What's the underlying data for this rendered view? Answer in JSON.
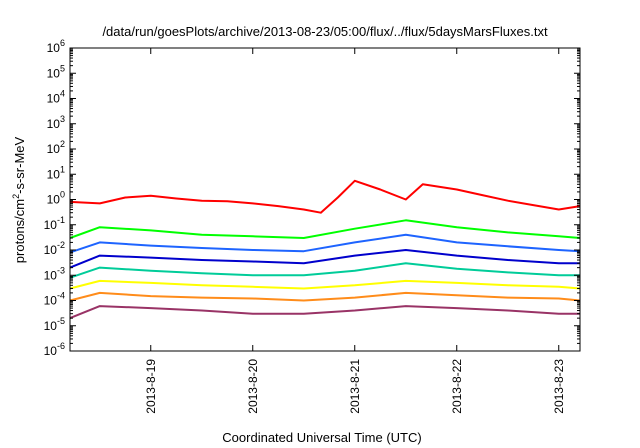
{
  "chart_data": {
    "type": "line",
    "title": "/data/run/goesPlots/archive/2013-08-23/05:00/flux/../flux/5daysMarsFluxes.txt",
    "xlabel": "Coordinated Universal Time (UTC)",
    "ylabel_parts": [
      "protons/cm",
      "2",
      "-s-sr-MeV"
    ],
    "y_scale": "log",
    "ylim": [
      1e-06,
      1000000.0
    ],
    "y_ticks": [
      {
        "base": "10",
        "exp": "-6",
        "value": 1e-06
      },
      {
        "base": "10",
        "exp": "-5",
        "value": 1e-05
      },
      {
        "base": "10",
        "exp": "-4",
        "value": 0.0001
      },
      {
        "base": "10",
        "exp": "-3",
        "value": 0.001
      },
      {
        "base": "10",
        "exp": "-2",
        "value": 0.01
      },
      {
        "base": "10",
        "exp": "-1",
        "value": 0.1
      },
      {
        "base": "10",
        "exp": "0",
        "value": 1
      },
      {
        "base": "10",
        "exp": "1",
        "value": 10.0
      },
      {
        "base": "10",
        "exp": "2",
        "value": 100.0
      },
      {
        "base": "10",
        "exp": "3",
        "value": 1000.0
      },
      {
        "base": "10",
        "exp": "4",
        "value": 10000.0
      },
      {
        "base": "10",
        "exp": "5",
        "value": 100000.0
      },
      {
        "base": "10",
        "exp": "6",
        "value": 1000000.0
      }
    ],
    "xlim": [
      "2013-08-18 05:00",
      "2013-08-23 05:00"
    ],
    "x_ticks": [
      {
        "label": "2013-8-19",
        "date": "2013-08-19 00:00"
      },
      {
        "label": "2013-8-20",
        "date": "2013-08-20 00:00"
      },
      {
        "label": "2013-8-21",
        "date": "2013-08-21 00:00"
      },
      {
        "label": "2013-8-22",
        "date": "2013-08-22 00:00"
      },
      {
        "label": "2013-8-23",
        "date": "2013-08-23 00:00"
      }
    ],
    "grid": false,
    "series": [
      {
        "color": "#ff0000",
        "points": [
          [
            "2013-08-18 05:00",
            0.8
          ],
          [
            "2013-08-18 12:00",
            0.7
          ],
          [
            "2013-08-18 18:00",
            1.2
          ],
          [
            "2013-08-19 00:00",
            1.4
          ],
          [
            "2013-08-19 06:00",
            1.1
          ],
          [
            "2013-08-19 12:00",
            0.9
          ],
          [
            "2013-08-19 18:00",
            0.85
          ],
          [
            "2013-08-20 00:00",
            0.7
          ],
          [
            "2013-08-20 06:00",
            0.55
          ],
          [
            "2013-08-20 12:00",
            0.4
          ],
          [
            "2013-08-20 16:00",
            0.3
          ],
          [
            "2013-08-20 20:00",
            1.2
          ],
          [
            "2013-08-21 00:00",
            5.5
          ],
          [
            "2013-08-21 06:00",
            2.5
          ],
          [
            "2013-08-21 12:00",
            1.0
          ],
          [
            "2013-08-21 16:00",
            4.0
          ],
          [
            "2013-08-22 00:00",
            2.5
          ],
          [
            "2013-08-22 06:00",
            1.5
          ],
          [
            "2013-08-22 12:00",
            0.9
          ],
          [
            "2013-08-22 18:00",
            0.6
          ],
          [
            "2013-08-23 00:00",
            0.4
          ],
          [
            "2013-08-23 05:00",
            0.55
          ]
        ]
      },
      {
        "color": "#00ff00",
        "points": [
          [
            "2013-08-18 05:00",
            0.03
          ],
          [
            "2013-08-18 12:00",
            0.08
          ],
          [
            "2013-08-19 00:00",
            0.06
          ],
          [
            "2013-08-19 12:00",
            0.04
          ],
          [
            "2013-08-20 00:00",
            0.035
          ],
          [
            "2013-08-20 12:00",
            0.03
          ],
          [
            "2013-08-21 00:00",
            0.07
          ],
          [
            "2013-08-21 12:00",
            0.15
          ],
          [
            "2013-08-22 00:00",
            0.08
          ],
          [
            "2013-08-22 12:00",
            0.05
          ],
          [
            "2013-08-23 00:00",
            0.035
          ],
          [
            "2013-08-23 05:00",
            0.03
          ]
        ]
      },
      {
        "color": "#1e64ff",
        "points": [
          [
            "2013-08-18 05:00",
            0.008
          ],
          [
            "2013-08-18 12:00",
            0.02
          ],
          [
            "2013-08-19 00:00",
            0.015
          ],
          [
            "2013-08-19 12:00",
            0.012
          ],
          [
            "2013-08-20 00:00",
            0.01
          ],
          [
            "2013-08-20 12:00",
            0.009
          ],
          [
            "2013-08-21 00:00",
            0.02
          ],
          [
            "2013-08-21 12:00",
            0.04
          ],
          [
            "2013-08-22 00:00",
            0.02
          ],
          [
            "2013-08-22 12:00",
            0.014
          ],
          [
            "2013-08-23 00:00",
            0.01
          ],
          [
            "2013-08-23 05:00",
            0.009
          ]
        ]
      },
      {
        "color": "#0000cc",
        "points": [
          [
            "2013-08-18 05:00",
            0.002
          ],
          [
            "2013-08-18 12:00",
            0.006
          ],
          [
            "2013-08-19 00:00",
            0.005
          ],
          [
            "2013-08-19 12:00",
            0.004
          ],
          [
            "2013-08-20 00:00",
            0.0035
          ],
          [
            "2013-08-20 12:00",
            0.003
          ],
          [
            "2013-08-21 00:00",
            0.006
          ],
          [
            "2013-08-21 12:00",
            0.01
          ],
          [
            "2013-08-22 00:00",
            0.006
          ],
          [
            "2013-08-22 12:00",
            0.004
          ],
          [
            "2013-08-23 00:00",
            0.003
          ],
          [
            "2013-08-23 05:00",
            0.003
          ]
        ]
      },
      {
        "color": "#00cc99",
        "points": [
          [
            "2013-08-18 05:00",
            0.0008
          ],
          [
            "2013-08-18 12:00",
            0.002
          ],
          [
            "2013-08-19 00:00",
            0.0015
          ],
          [
            "2013-08-19 12:00",
            0.0012
          ],
          [
            "2013-08-20 00:00",
            0.001
          ],
          [
            "2013-08-20 12:00",
            0.001
          ],
          [
            "2013-08-21 00:00",
            0.0015
          ],
          [
            "2013-08-21 12:00",
            0.003
          ],
          [
            "2013-08-22 00:00",
            0.0018
          ],
          [
            "2013-08-22 12:00",
            0.0013
          ],
          [
            "2013-08-23 00:00",
            0.001
          ],
          [
            "2013-08-23 05:00",
            0.001
          ]
        ]
      },
      {
        "color": "#ffff00",
        "points": [
          [
            "2013-08-18 05:00",
            0.0003
          ],
          [
            "2013-08-18 12:00",
            0.0006
          ],
          [
            "2013-08-19 00:00",
            0.0005
          ],
          [
            "2013-08-19 12:00",
            0.0004
          ],
          [
            "2013-08-20 00:00",
            0.00035
          ],
          [
            "2013-08-20 12:00",
            0.0003
          ],
          [
            "2013-08-21 00:00",
            0.0004
          ],
          [
            "2013-08-21 12:00",
            0.0006
          ],
          [
            "2013-08-22 00:00",
            0.0005
          ],
          [
            "2013-08-22 12:00",
            0.0004
          ],
          [
            "2013-08-23 00:00",
            0.00035
          ],
          [
            "2013-08-23 05:00",
            0.0003
          ]
        ]
      },
      {
        "color": "#ff8c1a",
        "points": [
          [
            "2013-08-18 05:00",
            0.0001
          ],
          [
            "2013-08-18 12:00",
            0.0002
          ],
          [
            "2013-08-19 00:00",
            0.00015
          ],
          [
            "2013-08-19 12:00",
            0.00013
          ],
          [
            "2013-08-20 00:00",
            0.00012
          ],
          [
            "2013-08-20 12:00",
            0.0001
          ],
          [
            "2013-08-21 00:00",
            0.00013
          ],
          [
            "2013-08-21 12:00",
            0.0002
          ],
          [
            "2013-08-22 00:00",
            0.00016
          ],
          [
            "2013-08-22 12:00",
            0.00013
          ],
          [
            "2013-08-23 00:00",
            0.00012
          ],
          [
            "2013-08-23 05:00",
            0.0001
          ]
        ]
      },
      {
        "color": "#993366",
        "points": [
          [
            "2013-08-18 05:00",
            2e-05
          ],
          [
            "2013-08-18 12:00",
            6e-05
          ],
          [
            "2013-08-19 00:00",
            5e-05
          ],
          [
            "2013-08-19 12:00",
            4e-05
          ],
          [
            "2013-08-20 00:00",
            3e-05
          ],
          [
            "2013-08-20 12:00",
            3e-05
          ],
          [
            "2013-08-21 00:00",
            4e-05
          ],
          [
            "2013-08-21 12:00",
            6e-05
          ],
          [
            "2013-08-22 00:00",
            5e-05
          ],
          [
            "2013-08-22 12:00",
            4e-05
          ],
          [
            "2013-08-23 00:00",
            3e-05
          ],
          [
            "2013-08-23 05:00",
            3e-05
          ]
        ]
      }
    ]
  }
}
